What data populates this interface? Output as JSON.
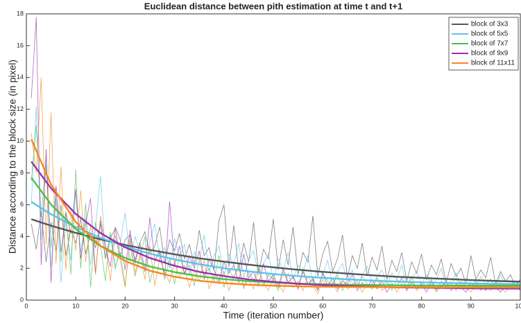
{
  "chart_data": {
    "type": "line",
    "title": "Euclidean distance between pith estimation at time t and t+1",
    "xlabel": "Time (iteration number)",
    "ylabel": "Distance according to the block size (in pixel)",
    "xlim": [
      0,
      100
    ],
    "ylim": [
      0,
      18
    ],
    "xticks": [
      0,
      10,
      20,
      30,
      40,
      50,
      60,
      70,
      80,
      90,
      100
    ],
    "yticks": [
      0,
      2,
      4,
      6,
      8,
      10,
      12,
      14,
      16,
      18
    ],
    "grid": false,
    "legend": "upper right",
    "x": [
      1,
      5,
      10,
      15,
      20,
      25,
      30,
      35,
      40,
      45,
      50,
      55,
      60,
      65,
      70,
      75,
      80,
      85,
      90,
      95,
      100
    ],
    "series": [
      {
        "name": "block of 3x3",
        "color": "#555555",
        "values": [
          5.09,
          4.68,
          4.23,
          3.82,
          3.47,
          3.16,
          2.88,
          2.63,
          2.42,
          2.23,
          2.06,
          1.91,
          1.78,
          1.67,
          1.56,
          1.47,
          1.4,
          1.33,
          1.26,
          1.21,
          1.16
        ]
      },
      {
        "name": "block of 5x5",
        "color": "#5bc3ee",
        "values": [
          6.18,
          5.4,
          4.59,
          3.92,
          3.37,
          2.92,
          2.56,
          2.26,
          2.01,
          1.81,
          1.64,
          1.51,
          1.4,
          1.31,
          1.23,
          1.17,
          1.12,
          1.08,
          1.05,
          1.02,
          1.0
        ]
      },
      {
        "name": "block of 7x7",
        "color": "#4cbf4a",
        "values": [
          7.7,
          6.01,
          4.47,
          3.4,
          2.65,
          2.12,
          1.76,
          1.5,
          1.32,
          1.19,
          1.11,
          1.04,
          1.0,
          0.97,
          0.95,
          0.93,
          0.92,
          0.92,
          0.91,
          0.91,
          0.91
        ]
      },
      {
        "name": "block of 9x9",
        "color": "#9a30ae",
        "values": [
          8.71,
          7.03,
          5.42,
          4.22,
          3.32,
          2.65,
          2.16,
          1.78,
          1.51,
          1.3,
          1.15,
          1.03,
          0.95,
          0.89,
          0.84,
          0.8,
          0.78,
          0.76,
          0.74,
          0.73,
          0.72
        ]
      },
      {
        "name": "block of 11x11",
        "color": "#f7871f",
        "values": [
          10.11,
          7.27,
          4.91,
          3.41,
          2.46,
          1.85,
          1.47,
          1.22,
          1.07,
          0.97,
          0.91,
          0.87,
          0.84,
          0.83,
          0.82,
          0.81,
          0.81,
          0.8,
          0.8,
          0.8,
          0.8
        ]
      }
    ],
    "raw_x": [
      1,
      2,
      3,
      4,
      5,
      6,
      7,
      8,
      9,
      10,
      11,
      12,
      13,
      14,
      15,
      16,
      17,
      18,
      19,
      20,
      21,
      22,
      23,
      24,
      25,
      26,
      27,
      28,
      29,
      30,
      31,
      32,
      33,
      34,
      35,
      36,
      37,
      38,
      39,
      40,
      41,
      42,
      43,
      44,
      45,
      46,
      47,
      48,
      49,
      50,
      51,
      52,
      53,
      54,
      55,
      56,
      57,
      58,
      59,
      60,
      61,
      62,
      63,
      64,
      65,
      66,
      67,
      68,
      69,
      70,
      71,
      72,
      73,
      74,
      75,
      76,
      77,
      78,
      79,
      80,
      81,
      82,
      83,
      84,
      85,
      86,
      87,
      88,
      89,
      90,
      91,
      92,
      93,
      94,
      95,
      96,
      97,
      98,
      99,
      100
    ],
    "raw": [
      {
        "color": "#555555",
        "values": [
          4.8,
          3.2,
          5.6,
          2.4,
          4.9,
          3.1,
          6.0,
          2.8,
          4.4,
          3.6,
          5.1,
          2.9,
          4.2,
          3.3,
          4.8,
          2.6,
          3.9,
          4.5,
          2.7,
          3.8,
          4.1,
          2.5,
          3.6,
          4.3,
          2.9,
          3.4,
          4.6,
          2.3,
          3.8,
          3.1,
          4.2,
          2.6,
          3.5,
          2.2,
          4.4,
          2.8,
          3.3,
          1.9,
          5.0,
          6.0,
          2.1,
          4.7,
          1.8,
          3.6,
          2.4,
          4.9,
          1.7,
          3.2,
          2.6,
          5.1,
          1.9,
          3.8,
          2.2,
          4.6,
          1.6,
          3.0,
          2.4,
          5.3,
          1.5,
          2.9,
          3.7,
          1.8,
          2.6,
          4.1,
          1.4,
          2.8,
          2.0,
          3.6,
          1.5,
          2.7,
          1.9,
          3.4,
          1.3,
          2.5,
          1.8,
          3.0,
          1.2,
          2.4,
          1.7,
          2.9,
          1.3,
          2.2,
          1.6,
          2.6,
          1.1,
          2.3,
          1.5,
          2.0,
          1.0,
          2.8,
          1.3,
          1.9,
          1.4,
          2.7,
          1.0,
          1.8,
          1.2,
          1.6,
          0.9,
          1.3
        ]
      },
      {
        "color": "#5bc3ee",
        "values": [
          6.0,
          12.2,
          3.8,
          8.5,
          2.1,
          6.4,
          1.1,
          4.9,
          2.5,
          6.8,
          3.0,
          5.2,
          2.2,
          4.6,
          7.8,
          2.8,
          4.1,
          1.9,
          3.6,
          5.5,
          2.4,
          4.0,
          3.1,
          1.8,
          3.7,
          4.8,
          2.6,
          3.3,
          2.0,
          3.9,
          2.7,
          3.5,
          1.6,
          3.0,
          2.5,
          4.1,
          1.8,
          2.8,
          3.4,
          1.5,
          2.9,
          2.2,
          3.6,
          1.4,
          2.5,
          3.1,
          1.6,
          2.3,
          2.9,
          1.2,
          2.6,
          1.9,
          3.0,
          1.3,
          2.2,
          1.7,
          2.8,
          1.1,
          2.0,
          1.6,
          2.5,
          1.0,
          1.8,
          2.3,
          1.2,
          1.9,
          0.8,
          1.6,
          2.1,
          1.0,
          1.5,
          1.9,
          0.9,
          1.7,
          1.3,
          2.2,
          0.8,
          1.4,
          1.8,
          1.0,
          1.6,
          0.9,
          1.3,
          2.0,
          0.8,
          1.2,
          1.7,
          0.9,
          1.4,
          1.1,
          0.8,
          1.5,
          1.0,
          1.3,
          0.7,
          1.6,
          0.9,
          1.2,
          1.0,
          1.3
        ]
      },
      {
        "color": "#4cbf4a",
        "values": [
          7.5,
          11.0,
          5.2,
          9.0,
          3.3,
          7.1,
          2.4,
          5.6,
          1.6,
          8.2,
          2.0,
          6.1,
          0.8,
          4.9,
          3.5,
          1.2,
          4.3,
          2.1,
          3.0,
          0.9,
          3.8,
          1.5,
          2.7,
          4.0,
          1.1,
          2.4,
          3.2,
          1.3,
          2.6,
          1.0,
          2.9,
          1.7,
          2.2,
          0.9,
          2.5,
          1.6,
          2.0,
          1.2,
          2.8,
          0.8,
          1.9,
          1.4,
          2.3,
          0.7,
          1.8,
          1.2,
          2.1,
          0.9,
          1.6,
          1.3,
          0.6,
          1.8,
          1.1,
          1.5,
          0.8,
          2.0,
          1.0,
          1.4,
          0.7,
          1.7,
          1.2,
          0.9,
          1.6,
          0.6,
          1.3,
          1.1,
          0.8,
          1.5,
          1.0,
          0.7,
          1.4,
          0.9,
          1.2,
          0.6,
          1.3,
          1.0,
          0.8,
          1.5,
          0.7,
          1.1,
          0.9,
          1.3,
          0.6,
          1.2,
          0.8,
          1.0,
          1.4,
          0.7,
          1.1,
          0.9,
          1.2,
          0.6,
          1.0,
          1.3,
          0.8,
          1.1,
          0.7,
          1.0,
          1.2,
          0.9
        ]
      },
      {
        "color": "#9a30ae",
        "values": [
          12.7,
          17.8,
          2.2,
          9.5,
          1.1,
          7.2,
          3.0,
          5.5,
          4.2,
          7.0,
          2.6,
          4.8,
          6.4,
          1.7,
          5.0,
          3.3,
          2.1,
          4.6,
          3.8,
          1.9,
          4.4,
          2.3,
          3.6,
          1.8,
          5.2,
          2.5,
          3.0,
          1.5,
          6.2,
          2.2,
          3.4,
          1.6,
          2.8,
          2.0,
          3.1,
          1.3,
          2.6,
          1.9,
          1.2,
          2.4,
          1.7,
          2.2,
          1.1,
          2.9,
          1.4,
          1.8,
          0.9,
          2.3,
          1.2,
          1.6,
          0.8,
          2.0,
          1.1,
          1.5,
          0.7,
          1.8,
          1.0,
          1.3,
          0.6,
          1.7,
          0.9,
          1.4,
          0.7,
          1.2,
          1.0,
          1.6,
          0.6,
          1.1,
          0.8,
          1.3,
          0.7,
          1.2,
          0.5,
          1.0,
          0.9,
          1.4,
          0.6,
          1.1,
          0.8,
          1.0,
          0.5,
          1.2,
          0.7,
          0.9,
          1.1,
          0.6,
          1.0,
          0.8,
          0.5,
          1.1,
          0.7,
          0.9,
          0.6,
          1.0,
          0.8,
          0.5,
          0.9,
          0.7,
          1.0,
          0.6
        ]
      },
      {
        "color": "#f7871f",
        "values": [
          10.5,
          8.0,
          14.0,
          3.5,
          11.8,
          2.3,
          8.4,
          1.9,
          5.6,
          3.1,
          6.9,
          2.4,
          4.7,
          1.6,
          5.3,
          3.6,
          1.2,
          4.1,
          2.5,
          0.8,
          3.9,
          1.7,
          2.9,
          1.3,
          3.4,
          0.9,
          2.6,
          1.8,
          1.1,
          2.4,
          1.4,
          2.2,
          0.8,
          1.9,
          1.2,
          2.5,
          0.7,
          1.6,
          1.0,
          1.8,
          0.6,
          1.5,
          2.0,
          0.9,
          1.3,
          0.7,
          1.9,
          1.1,
          0.6,
          1.4,
          1.0,
          0.5,
          1.7,
          0.8,
          1.2,
          0.6,
          1.5,
          0.9,
          0.4,
          1.3,
          0.8,
          1.1,
          0.5,
          1.4,
          0.7,
          0.9,
          1.2,
          0.5,
          1.0,
          0.8,
          1.3,
          0.6,
          0.9,
          1.1,
          0.5,
          1.0,
          0.7,
          1.2,
          0.6,
          0.9,
          0.8,
          1.1,
          0.5,
          0.9,
          0.7,
          1.0,
          0.6,
          1.2,
          0.8,
          0.5,
          1.0,
          0.7,
          0.9,
          0.6,
          1.1,
          0.8,
          0.5,
          0.9,
          0.7,
          1.0
        ]
      }
    ]
  }
}
